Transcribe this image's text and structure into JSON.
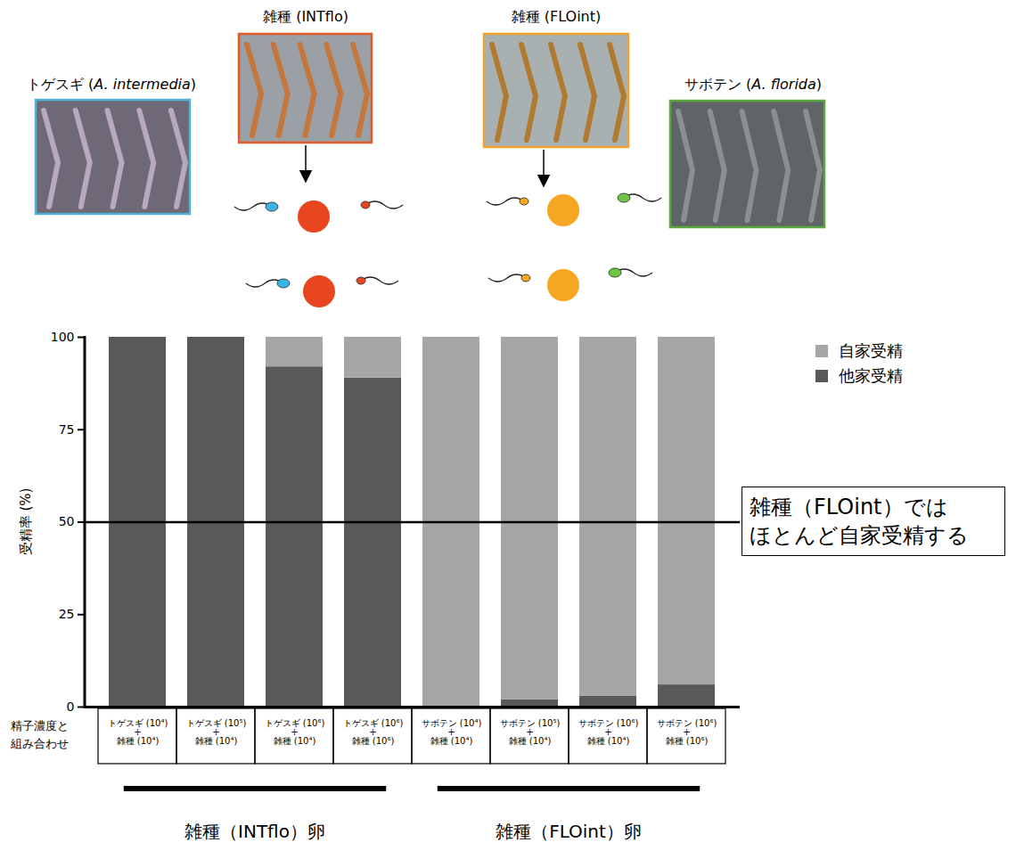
{
  "chart_data": {
    "type": "bar",
    "stacked": true,
    "categories": [
      "トゲスギ (10⁴) + 雑種 (10⁴)",
      "トゲスギ (10⁵) + 雑種 (10⁴)",
      "トゲスギ (10⁶) + 雑種 (10⁴)",
      "トゲスギ (10⁶) + 雑種 (10⁶)",
      "サボテン (10⁴) + 雑種 (10⁴)",
      "サボテン (10⁵) + 雑種 (10⁴)",
      "サボテン (10⁶) + 雑種 (10⁴)",
      "サボテン (10⁶) + 雑種 (10⁶)"
    ],
    "series": [
      {
        "name": "他家受精",
        "color": "#595959",
        "values": [
          100,
          100,
          92,
          89,
          0,
          2,
          3,
          6
        ]
      },
      {
        "name": "自家受精",
        "color": "#a6a6a6",
        "values": [
          0,
          0,
          8,
          11,
          100,
          98,
          97,
          94
        ]
      }
    ],
    "ylabel": "受精率 (%)",
    "xlabel": "精子濃度と\n組み合わせ",
    "ylim": [
      0,
      100
    ],
    "yticks": [
      0,
      25,
      50,
      75,
      100
    ],
    "reference_line": 50,
    "annotation": "雑種（FLOint）では\nほとんど自家受精する",
    "groups": [
      {
        "label": "雑種（INTflo）卵",
        "size": 4
      },
      {
        "label": "雑種（FLOint）卵",
        "size": 4
      }
    ],
    "legend": "top-right",
    "grid": false
  },
  "header": {
    "panels": [
      {
        "label": "トゲスギ (A. intermedia)",
        "color": "#4fb3d9"
      },
      {
        "label": "雑種 (INTflo)",
        "color": "#e05a2b"
      },
      {
        "label": "雑種 (FLOint)",
        "color": "#f0a030"
      },
      {
        "label": "サボテン (A. florida)",
        "color": "#5aa840"
      }
    ]
  }
}
